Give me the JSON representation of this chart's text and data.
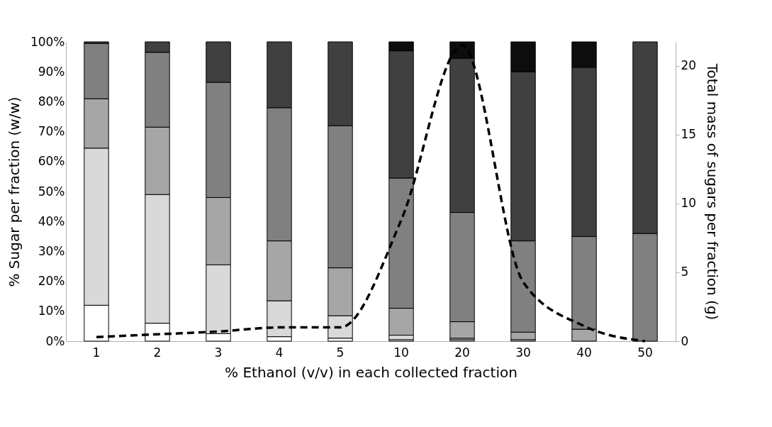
{
  "chart_data": {
    "type": "bar",
    "stacked": true,
    "xlabel": "% Ethanol (v/v) in each collected fraction",
    "ylabel": "% Sugar per fraction (w/w)",
    "y2label": "Total mass of sugars per fraction (g)",
    "categories": [
      "1",
      "2",
      "3",
      "4",
      "5",
      "10",
      "20",
      "30",
      "40",
      "50"
    ],
    "series": [
      {
        "color": "#ffffff",
        "values": [
          12,
          6,
          2.5,
          1.5,
          1,
          0.5,
          0.5,
          0,
          0,
          0
        ]
      },
      {
        "color": "#d9d9d9",
        "values": [
          52.5,
          43,
          23,
          12,
          7.5,
          1.5,
          0.5,
          0.5,
          0,
          0
        ]
      },
      {
        "color": "#a6a6a6",
        "values": [
          16.5,
          22.5,
          22.5,
          20,
          16,
          9,
          5.5,
          2.5,
          4,
          0
        ]
      },
      {
        "color": "#808080",
        "values": [
          18.5,
          25,
          38.5,
          44.5,
          47.5,
          43.5,
          36.5,
          30.5,
          31,
          36
        ]
      },
      {
        "color": "#404040",
        "values": [
          0.5,
          3.5,
          13.5,
          22,
          28,
          42.5,
          51.5,
          56.5,
          56.5,
          64
        ]
      },
      {
        "color": "#0d0d0d",
        "values": [
          0,
          0,
          0,
          0,
          0,
          3,
          5.5,
          10,
          8.5,
          0
        ]
      },
      {
        "type": "line",
        "axis": "y2",
        "color": "#000000",
        "line_style": "dashed",
        "values": [
          0.3,
          0.5,
          0.7,
          1.0,
          1.0,
          8.8,
          21.5,
          4.3,
          1.1,
          0
        ]
      }
    ],
    "ylim": [
      0,
      100
    ],
    "yticks": [
      {
        "value": 0,
        "label": "0%"
      },
      {
        "value": 10,
        "label": "10%"
      },
      {
        "value": 20,
        "label": "20%"
      },
      {
        "value": 30,
        "label": "30%"
      },
      {
        "value": 40,
        "label": "40%"
      },
      {
        "value": 50,
        "label": "50%"
      },
      {
        "value": 60,
        "label": "60%"
      },
      {
        "value": 70,
        "label": "70%"
      },
      {
        "value": 80,
        "label": "80%"
      },
      {
        "value": 90,
        "label": "90%"
      },
      {
        "value": 100,
        "label": "100%"
      }
    ],
    "y2lim": [
      0,
      21.75
    ],
    "y2ticks": [
      0,
      5,
      10,
      15,
      20
    ],
    "grid": false,
    "legend": false
  }
}
